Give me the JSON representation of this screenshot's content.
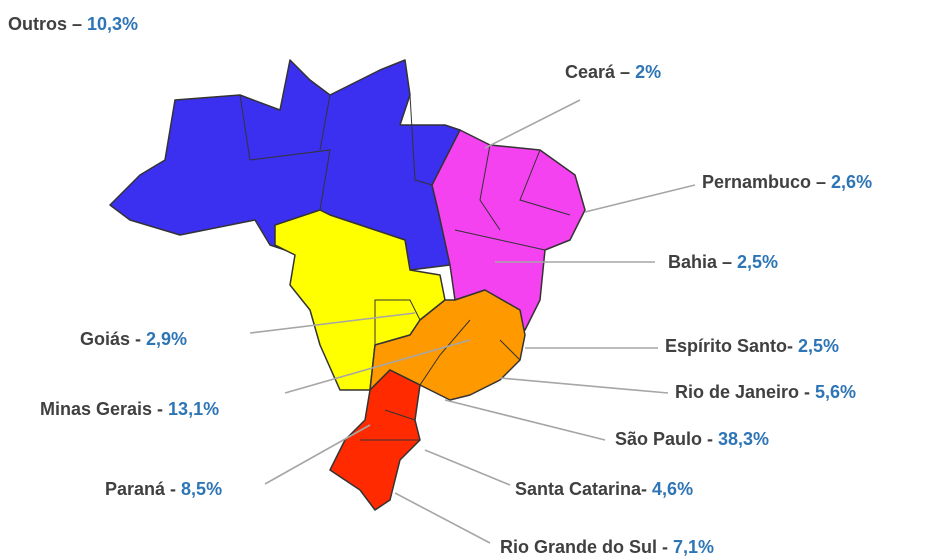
{
  "labels": [
    {
      "name": "Outros –",
      "value": "10,3%"
    },
    {
      "name": "Ceará –",
      "value": "2%"
    },
    {
      "name": "Pernambuco –",
      "value": "2,6%"
    },
    {
      "name": "Bahia –",
      "value": "2,5%"
    },
    {
      "name": "Goiás -",
      "value": "2,9%"
    },
    {
      "name": "Espírito Santo-",
      "value": "2,5%"
    },
    {
      "name": "Minas Gerais -",
      "value": "13,1%"
    },
    {
      "name": "Rio de Janeiro -",
      "value": "5,6%"
    },
    {
      "name": "São Paulo -",
      "value": "38,3%"
    },
    {
      "name": "Paraná -",
      "value": "8,5%"
    },
    {
      "name": "Santa Catarina-",
      "value": "4,6%"
    },
    {
      "name": "Rio Grande do Sul -",
      "value": "7,1%"
    }
  ]
}
